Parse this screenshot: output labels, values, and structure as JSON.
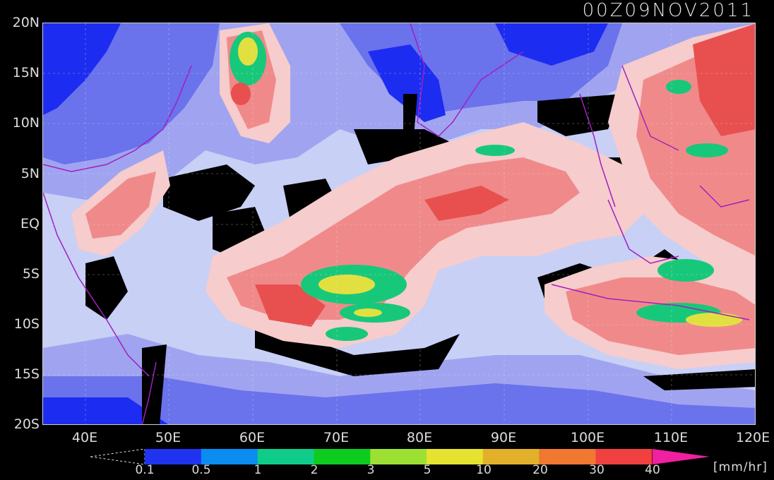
{
  "timestamp": "00Z09NOV2011",
  "lat_labels": [
    "20N",
    "15N",
    "10N",
    "5N",
    "EQ",
    "5S",
    "10S",
    "15S",
    "20S"
  ],
  "lon_labels": [
    "40E",
    "50E",
    "60E",
    "70E",
    "80E",
    "90E",
    "100E",
    "110E",
    "120E"
  ],
  "colorbar": {
    "ticks": [
      "0.1",
      "0.5",
      "1",
      "2",
      "3",
      "5",
      "10",
      "20",
      "30",
      "40"
    ],
    "colors": [
      "#2034f0",
      "#0a8cf0",
      "#10cc8a",
      "#0ccc20",
      "#9ce034",
      "#e6e230",
      "#e2b02a",
      "#f07830",
      "#f04040"
    ],
    "over_color": "#f020a0",
    "unit": "[mm/hr]"
  },
  "map": {
    "lon_range": [
      35,
      120
    ],
    "lat_range": [
      -20,
      20
    ],
    "background_levels": {
      "deep_blue": "#1c2cf0",
      "mid_blue": "#6a72ec",
      "light_blue": "#a0a4f0",
      "pale_blue": "#c8d0f6",
      "black_gap": "#000000",
      "pale_pink": "#f6cccc",
      "light_red": "#f08a8a",
      "red": "#e85050",
      "rain_green": "#18c87a",
      "rain_yellow": "#e2e040",
      "coast": "#a020c0"
    }
  }
}
